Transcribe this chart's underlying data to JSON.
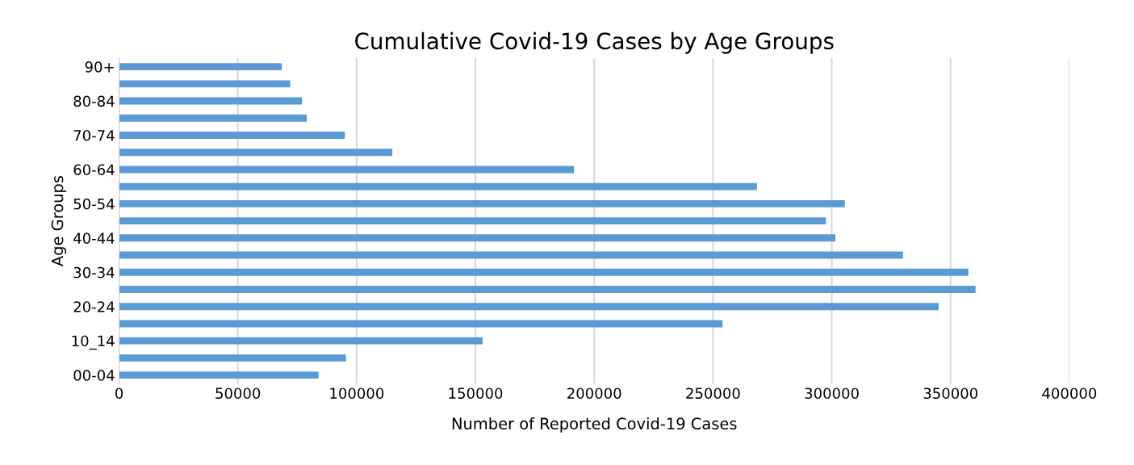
{
  "chart_data": {
    "type": "bar",
    "orientation": "horizontal",
    "title": "Cumulative Covid-19 Cases by Age Groups",
    "xlabel": "Number of Reported Covid-19 Cases",
    "ylabel": "Age Groups",
    "categories": [
      "90+",
      null,
      "80-84",
      null,
      "70-74",
      null,
      "60-64",
      null,
      "50-54",
      null,
      "40-44",
      null,
      "30-34",
      null,
      "20-24",
      null,
      "10_14",
      null,
      "00-04"
    ],
    "values": [
      68500,
      72000,
      77000,
      79000,
      95000,
      115000,
      191500,
      268500,
      305500,
      297500,
      301500,
      330000,
      357500,
      360500,
      345000,
      254000,
      153000,
      95500,
      84000
    ],
    "color": "#5b9bd5",
    "xlim": [
      0,
      400000
    ],
    "xticks": [
      0,
      50000,
      100000,
      150000,
      200000,
      250000,
      300000,
      350000,
      400000
    ],
    "grid": "x",
    "legend": false
  }
}
